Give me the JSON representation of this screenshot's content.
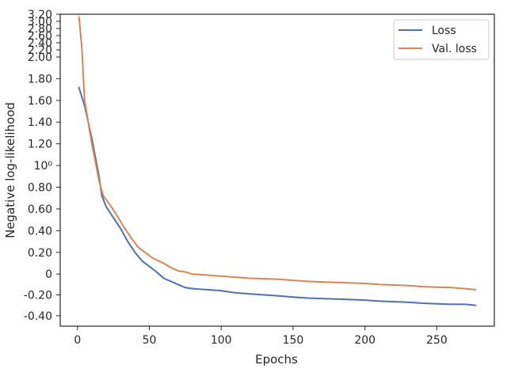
{
  "chart_data": {
    "type": "line",
    "xlabel": "Epochs",
    "ylabel": "Negative log-likelihood",
    "x_ticks": [
      0,
      50,
      100,
      150,
      200,
      250
    ],
    "y_ticks": [
      {
        "value": -0.4,
        "label": "-0.40"
      },
      {
        "value": -0.2,
        "label": "-0.20"
      },
      {
        "value": 0,
        "label": "0"
      },
      {
        "value": 0.2,
        "label": "0.20"
      },
      {
        "value": 0.4,
        "label": "0.40"
      },
      {
        "value": 0.6,
        "label": "0.60"
      },
      {
        "value": 0.8,
        "label": "0.80"
      },
      {
        "value": 1.0,
        "label": "10⁰"
      },
      {
        "value": 1.2,
        "label": "1.20"
      },
      {
        "value": 1.4,
        "label": "1.40"
      },
      {
        "value": 1.6,
        "label": "1.60"
      },
      {
        "value": 1.8,
        "label": "1.80"
      },
      {
        "value": 2.0,
        "label": "2.00"
      },
      {
        "value": 2.2,
        "label": "2.20"
      },
      {
        "value": 2.4,
        "label": "2.40"
      },
      {
        "value": 2.6,
        "label": "2.60"
      },
      {
        "value": 2.8,
        "label": "2.80"
      },
      {
        "value": 3.0,
        "label": "3.00"
      },
      {
        "value": 3.2,
        "label": "3.20"
      }
    ],
    "xlim": [
      -12,
      290
    ],
    "legend_position": "top-right",
    "grid": false,
    "series": [
      {
        "name": "Loss",
        "color": "#4c72b0",
        "x": [
          1,
          5,
          10,
          15,
          17,
          20,
          25,
          30,
          35,
          40,
          45,
          50,
          55,
          60,
          65,
          70,
          75,
          80,
          90,
          100,
          110,
          120,
          130,
          140,
          150,
          160,
          170,
          180,
          190,
          200,
          210,
          220,
          230,
          240,
          250,
          260,
          270,
          277
        ],
        "y": [
          1.72,
          1.55,
          1.25,
          0.9,
          0.72,
          0.62,
          0.52,
          0.42,
          0.3,
          0.2,
          0.12,
          0.07,
          0.02,
          -0.04,
          -0.07,
          -0.1,
          -0.13,
          -0.14,
          -0.15,
          -0.16,
          -0.18,
          -0.19,
          -0.2,
          -0.21,
          -0.22,
          -0.23,
          -0.235,
          -0.24,
          -0.245,
          -0.25,
          -0.26,
          -0.265,
          -0.27,
          -0.28,
          -0.285,
          -0.29,
          -0.29,
          -0.3
        ]
      },
      {
        "name": "Val. loss",
        "color": "#dd8452",
        "x": [
          1,
          3,
          5,
          10,
          15,
          18,
          22,
          27,
          32,
          37,
          42,
          47,
          52,
          60,
          65,
          70,
          75,
          80,
          90,
          100,
          110,
          120,
          130,
          140,
          150,
          160,
          170,
          180,
          190,
          200,
          210,
          220,
          230,
          240,
          250,
          260,
          270,
          277
        ],
        "y": [
          3.13,
          2.3,
          1.6,
          1.2,
          0.86,
          0.72,
          0.65,
          0.55,
          0.44,
          0.34,
          0.25,
          0.2,
          0.15,
          0.1,
          0.06,
          0.03,
          0.02,
          0.0,
          -0.01,
          -0.02,
          -0.03,
          -0.04,
          -0.045,
          -0.05,
          -0.06,
          -0.07,
          -0.075,
          -0.08,
          -0.085,
          -0.09,
          -0.1,
          -0.105,
          -0.11,
          -0.12,
          -0.125,
          -0.13,
          -0.14,
          -0.15
        ]
      }
    ]
  }
}
